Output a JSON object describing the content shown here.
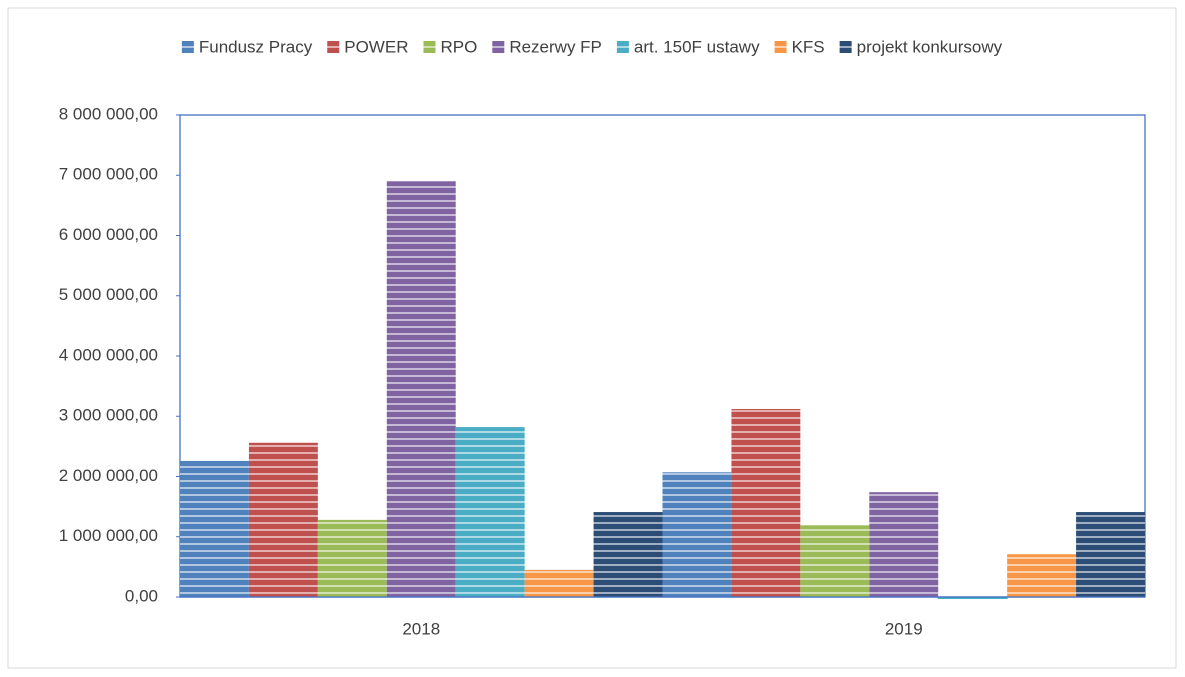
{
  "chart_data": {
    "type": "bar",
    "categories": [
      "2018",
      "2019"
    ],
    "series": [
      {
        "name": "Fundusz Pracy",
        "color": "#4f81bd",
        "values": [
          2260000,
          2070000
        ]
      },
      {
        "name": "POWER",
        "color": "#c0504d",
        "values": [
          2560000,
          3120000
        ]
      },
      {
        "name": "RPO",
        "color": "#9bbb59",
        "values": [
          1280000,
          1190000
        ]
      },
      {
        "name": "Rezerwy FP",
        "color": "#8064a2",
        "values": [
          6900000,
          1740000
        ]
      },
      {
        "name": "art. 150F ustawy",
        "color": "#4bacc6",
        "values": [
          2820000,
          0
        ]
      },
      {
        "name": "KFS",
        "color": "#f79646",
        "values": [
          450000,
          710000
        ]
      },
      {
        "name": "projekt konkursowy",
        "color": "#2c4d75",
        "values": [
          1410000,
          1410000
        ]
      }
    ],
    "ylim": [
      0,
      8000000
    ],
    "yticks": [
      {
        "value": 0,
        "label": "0,00"
      },
      {
        "value": 1000000,
        "label": "1 000 000,00"
      },
      {
        "value": 2000000,
        "label": "2 000 000,00"
      },
      {
        "value": 3000000,
        "label": "3 000 000,00"
      },
      {
        "value": 4000000,
        "label": "4 000 000,00"
      },
      {
        "value": 5000000,
        "label": "5 000 000,00"
      },
      {
        "value": 6000000,
        "label": "6 000 000,00"
      },
      {
        "value": 7000000,
        "label": "7 000 000,00"
      },
      {
        "value": 8000000,
        "label": "8 000 000,00"
      }
    ],
    "legend": "top"
  }
}
